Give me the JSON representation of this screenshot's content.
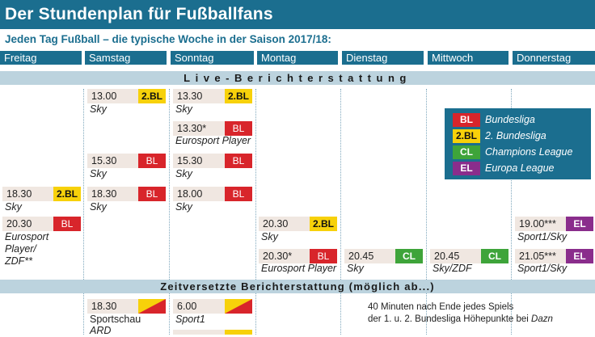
{
  "title": "Der Stundenplan für Fußballfans",
  "subtitle": "Jeden Tag Fußball – die typische Woche in der Saison 2017/18:",
  "days": [
    "Freitag",
    "Samstag",
    "Sonntag",
    "Montag",
    "Dienstag",
    "Mittwoch",
    "Donnerstag"
  ],
  "sections": {
    "live": "Live-Berichterstattung",
    "delayed": "Zeitversetzte Berichterstattung (möglich ab...)"
  },
  "legend": [
    {
      "code": "BL",
      "label": "Bundesliga",
      "color": "#d8252b"
    },
    {
      "code": "2.BL",
      "label": "2. Bundesliga",
      "color": "#f7d10a"
    },
    {
      "code": "CL",
      "label": "Champions League",
      "color": "#3ea43a"
    },
    {
      "code": "EL",
      "label": "Europa League",
      "color": "#8a2d8c"
    }
  ],
  "fri": {
    "s1": {
      "time": "18.30",
      "badge": "2.BL",
      "bc": "Sky"
    },
    "s2": {
      "time": "20.30",
      "badge": "BL",
      "bc1": "Eurosport",
      "bc2": "Player/",
      "bc3": "ZDF**"
    }
  },
  "sat": {
    "s1": {
      "time": "13.00",
      "badge": "2.BL",
      "bc": "Sky"
    },
    "s2": {
      "time": "15.30",
      "badge": "BL",
      "bc": "Sky"
    },
    "s3": {
      "time": "18.30",
      "badge": "BL",
      "bc": "Sky"
    },
    "d1": {
      "time": "18.30",
      "bc1": "Sportschau",
      "bc2": "ARD"
    }
  },
  "sun": {
    "s1": {
      "time": "13.30",
      "badge": "2.BL",
      "bc": "Sky"
    },
    "s2": {
      "time": "13.30*",
      "badge": "BL",
      "bc": "Eurosport Player"
    },
    "s3": {
      "time": "15.30",
      "badge": "BL",
      "bc": "Sky"
    },
    "s4": {
      "time": "18.00",
      "badge": "BL",
      "bc": "Sky"
    },
    "d1": {
      "time": "6.00",
      "bc": "Sport1"
    }
  },
  "mon": {
    "s1": {
      "time": "20.30",
      "badge": "2.BL",
      "bc": "Sky"
    },
    "s2": {
      "time": "20.30*",
      "badge": "BL",
      "bc": "Eurosport Player"
    }
  },
  "tue": {
    "s1": {
      "time": "20.45",
      "badge": "CL",
      "bc": "Sky"
    }
  },
  "wed": {
    "s1": {
      "time": "20.45",
      "badge": "CL",
      "bc": "Sky/ZDF"
    }
  },
  "thu": {
    "s1": {
      "time": "19.00***",
      "badge": "EL",
      "bc": "Sport1/Sky"
    },
    "s2": {
      "time": "21.05***",
      "badge": "EL",
      "bc": "Sport1/Sky"
    }
  },
  "note": {
    "line1": "40 Minuten nach Ende jedes Spiels",
    "line2a": "der 1. u. 2. Bundesliga Höhepunkte bei ",
    "line2b": "Dazn"
  }
}
